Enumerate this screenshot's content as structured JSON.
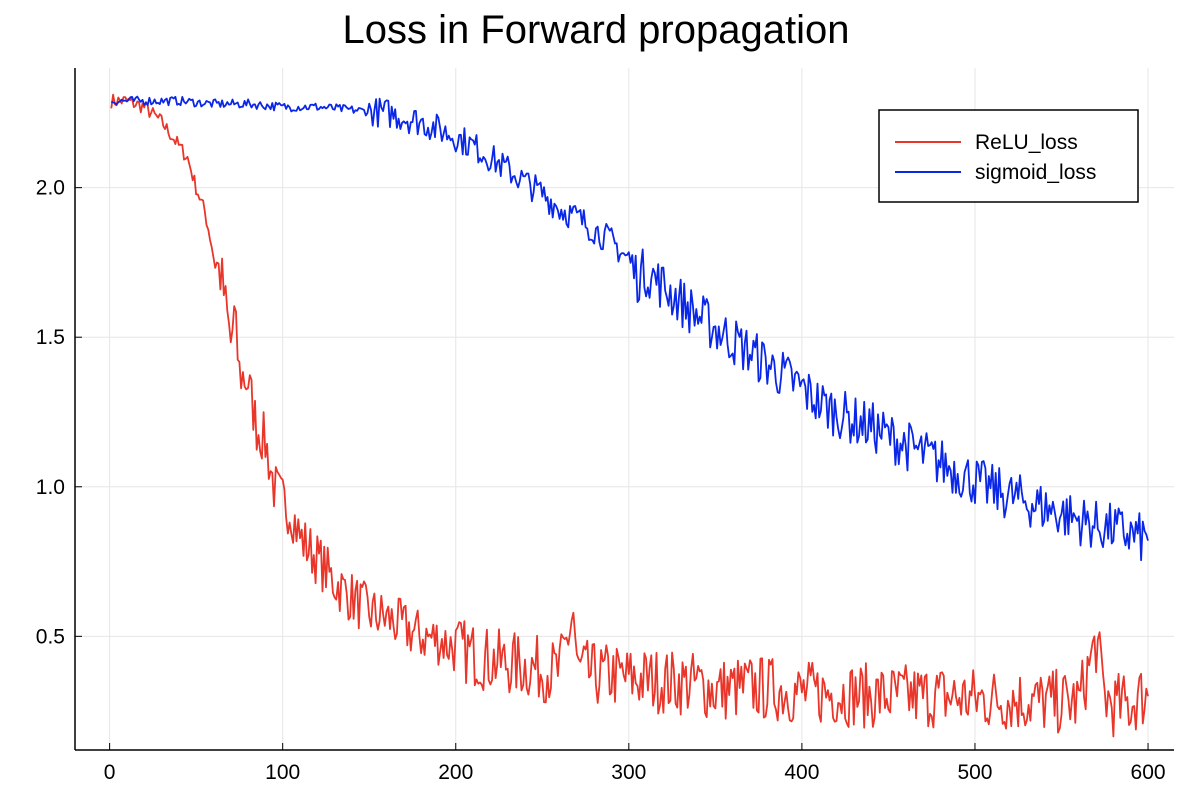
{
  "chart_data": {
    "type": "line",
    "title": "Loss in Forward propagation",
    "xlabel": "",
    "ylabel": "",
    "xlim": [
      -20,
      615
    ],
    "ylim": [
      0.12,
      2.4
    ],
    "xticks": [
      0,
      100,
      200,
      300,
      400,
      500,
      600
    ],
    "yticks": [
      0.5,
      1.0,
      1.5,
      2.0
    ],
    "xtick_labels": [
      "0",
      "100",
      "200",
      "300",
      "400",
      "500",
      "600"
    ],
    "ytick_labels": [
      "0.5",
      "1.0",
      "1.5",
      "2.0"
    ],
    "grid": true,
    "legend_position": "top-right",
    "series": [
      {
        "name": "ReLU_loss",
        "color": "#e8362a",
        "x": [
          1,
          10,
          20,
          30,
          40,
          45,
          50,
          55,
          60,
          65,
          70,
          72,
          75,
          80,
          85,
          90,
          95,
          100,
          105,
          110,
          120,
          130,
          140,
          150,
          160,
          170,
          180,
          190,
          200,
          210,
          220,
          230,
          240,
          250,
          260,
          268,
          270,
          280,
          290,
          300,
          320,
          340,
          350,
          370,
          390,
          400,
          420,
          440,
          460,
          480,
          500,
          520,
          540,
          560,
          570,
          575,
          580,
          590,
          595,
          600
        ],
        "y": [
          2.29,
          2.29,
          2.27,
          2.22,
          2.14,
          2.1,
          2.0,
          1.92,
          1.78,
          1.69,
          1.48,
          1.57,
          1.38,
          1.35,
          1.2,
          1.15,
          1.0,
          0.95,
          0.92,
          0.83,
          0.76,
          0.68,
          0.63,
          0.58,
          0.56,
          0.53,
          0.5,
          0.49,
          0.46,
          0.44,
          0.42,
          0.41,
          0.4,
          0.39,
          0.38,
          0.58,
          0.39,
          0.37,
          0.37,
          0.36,
          0.35,
          0.34,
          0.32,
          0.33,
          0.32,
          0.31,
          0.31,
          0.3,
          0.3,
          0.3,
          0.29,
          0.29,
          0.28,
          0.28,
          0.48,
          0.3,
          0.27,
          0.27,
          0.3,
          0.3
        ]
      },
      {
        "name": "sigmoid_loss",
        "color": "#0a27e8",
        "x": [
          1,
          20,
          40,
          60,
          80,
          100,
          120,
          140,
          160,
          180,
          200,
          210,
          220,
          230,
          240,
          250,
          260,
          270,
          280,
          290,
          300,
          305,
          310,
          320,
          330,
          340,
          350,
          360,
          370,
          380,
          390,
          400,
          410,
          420,
          430,
          440,
          450,
          460,
          470,
          480,
          490,
          500,
          510,
          520,
          530,
          540,
          550,
          560,
          570,
          580,
          590,
          600
        ],
        "y": [
          2.29,
          2.29,
          2.29,
          2.28,
          2.28,
          2.27,
          2.27,
          2.26,
          2.25,
          2.22,
          2.17,
          2.14,
          2.1,
          2.06,
          2.02,
          1.98,
          1.93,
          1.9,
          1.86,
          1.82,
          1.76,
          1.7,
          1.72,
          1.67,
          1.62,
          1.57,
          1.53,
          1.49,
          1.45,
          1.41,
          1.37,
          1.33,
          1.28,
          1.25,
          1.22,
          1.2,
          1.17,
          1.14,
          1.11,
          1.08,
          1.05,
          1.02,
          0.99,
          0.97,
          0.95,
          0.93,
          0.91,
          0.89,
          0.87,
          0.86,
          0.84,
          0.82
        ]
      }
    ]
  }
}
